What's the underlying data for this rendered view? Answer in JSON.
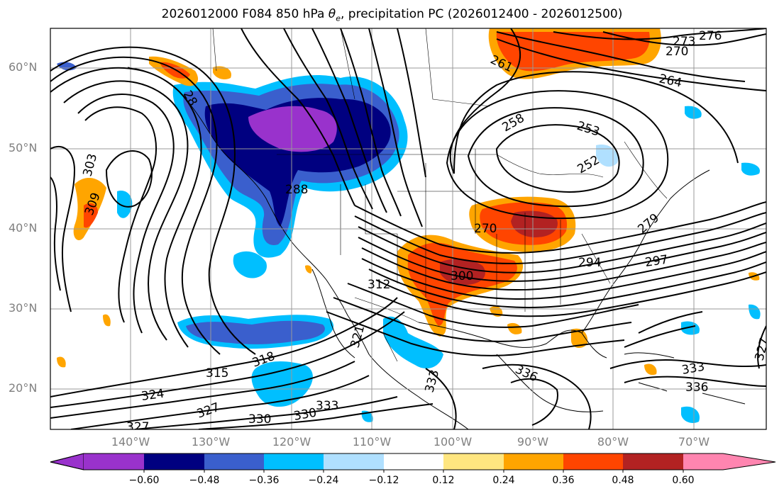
{
  "title": {
    "prefix": "2026012000 F084 850 hPa ",
    "theta_symbol": "θ",
    "theta_sub": "e",
    "suffix": ", precipitation PC (2026012400 - 2026012500)"
  },
  "lat_labels": [
    "60°N",
    "50°N",
    "40°N",
    "30°N",
    "20°N"
  ],
  "lon_labels": [
    "140°W",
    "130°W",
    "120°W",
    "110°W",
    "100°W",
    "90°W",
    "80°W",
    "70°W"
  ],
  "colorbar": {
    "ticks": [
      "−0.60",
      "−0.48",
      "−0.36",
      "−0.24",
      "−0.12",
      "0.12",
      "0.24",
      "0.36",
      "0.48",
      "0.60"
    ],
    "colors": [
      "#9932cc",
      "#000080",
      "#3a5fcd",
      "#00bfff",
      "#b0e0ff",
      "#ffffff",
      "#ffe680",
      "#ffa500",
      "#ff4500",
      "#b22222",
      "#ff85b0"
    ]
  },
  "contour_labels": [
    {
      "text": "276"
    },
    {
      "text": "273"
    },
    {
      "text": "270"
    },
    {
      "text": "261"
    },
    {
      "text": "264"
    },
    {
      "text": "258"
    },
    {
      "text": "253"
    },
    {
      "text": "252"
    },
    {
      "text": "303"
    },
    {
      "text": "309"
    },
    {
      "text": "28"
    },
    {
      "text": "270"
    },
    {
      "text": "279"
    },
    {
      "text": "288"
    },
    {
      "text": "294"
    },
    {
      "text": "297"
    },
    {
      "text": "300"
    },
    {
      "text": "312"
    },
    {
      "text": "321"
    },
    {
      "text": "315"
    },
    {
      "text": "318"
    },
    {
      "text": "324"
    },
    {
      "text": "327"
    },
    {
      "text": "327"
    },
    {
      "text": "330"
    },
    {
      "text": "330"
    },
    {
      "text": "333"
    },
    {
      "text": "333"
    },
    {
      "text": "333"
    },
    {
      "text": "336"
    },
    {
      "text": "336"
    },
    {
      "text": "327"
    }
  ]
}
